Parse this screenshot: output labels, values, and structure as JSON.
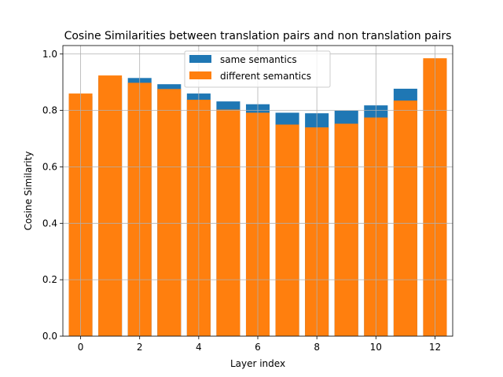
{
  "chart_data": {
    "type": "bar",
    "title": "Cosine Similarities between translation pairs and non translation pairs",
    "xlabel": "Layer index",
    "ylabel": "Cosine Similarity",
    "x": [
      0,
      1,
      2,
      3,
      4,
      5,
      6,
      7,
      8,
      9,
      10,
      11,
      12
    ],
    "xlim": [
      -0.6,
      12.6
    ],
    "ylim": [
      0.0,
      1.03
    ],
    "xticks": [
      0,
      2,
      4,
      6,
      8,
      10,
      12
    ],
    "yticks": [
      0.0,
      0.2,
      0.4,
      0.6,
      0.8,
      1.0
    ],
    "xtick_labels": [
      "0",
      "2",
      "4",
      "6",
      "8",
      "10",
      "12"
    ],
    "ytick_labels": [
      "0.0",
      "0.2",
      "0.4",
      "0.6",
      "0.8",
      "1.0"
    ],
    "grid": true,
    "legend_position": "upper center",
    "series": [
      {
        "name": "same semantics",
        "color": "#1f77b4",
        "values": [
          0.85,
          0.915,
          0.915,
          0.893,
          0.86,
          0.832,
          0.822,
          0.792,
          0.79,
          0.8,
          0.818,
          0.877,
          0.978
        ]
      },
      {
        "name": "different semantics",
        "color": "#ff7f0e",
        "values": [
          0.86,
          0.924,
          0.898,
          0.876,
          0.838,
          0.803,
          0.792,
          0.75,
          0.74,
          0.753,
          0.775,
          0.835,
          0.985
        ]
      }
    ]
  }
}
